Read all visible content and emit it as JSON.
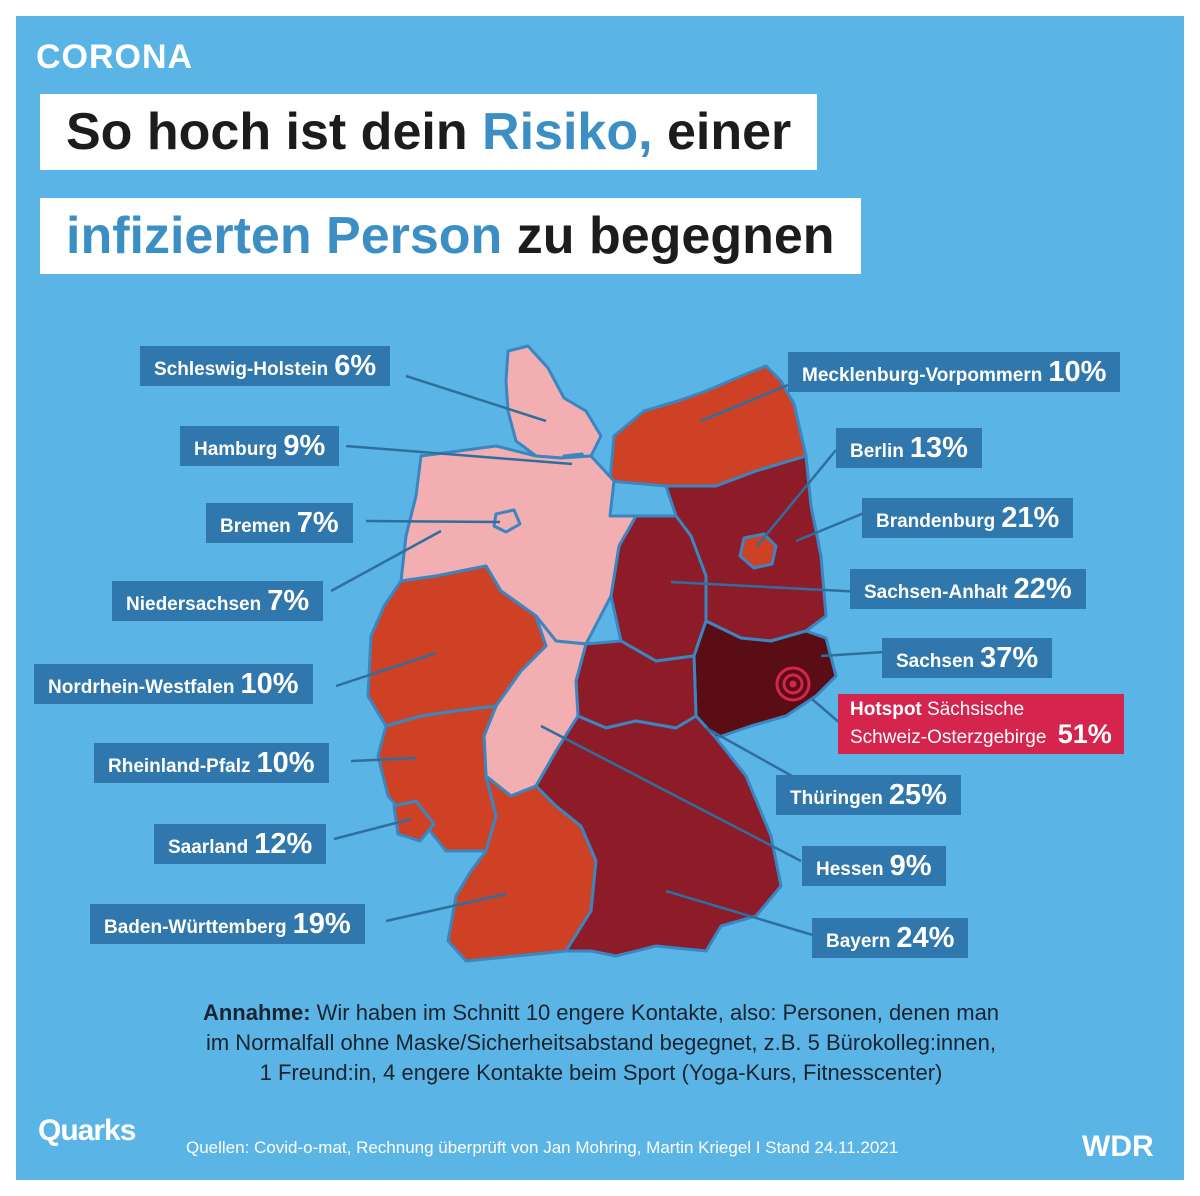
{
  "header": {
    "kicker": "CORONA",
    "title_line1": {
      "pre": "So hoch ist dein ",
      "highlight": "Risiko,",
      "post": " einer"
    },
    "title_line2": {
      "highlight": "infizierten Person",
      "post": " zu begegnen"
    }
  },
  "regions": [
    {
      "id": "sh",
      "name": "Schleswig-Holstein",
      "value": "6%"
    },
    {
      "id": "hh",
      "name": "Hamburg",
      "value": "9%"
    },
    {
      "id": "hb",
      "name": "Bremen",
      "value": "7%"
    },
    {
      "id": "ni",
      "name": "Niedersachsen",
      "value": "7%"
    },
    {
      "id": "nrw",
      "name": "Nordrhein-Westfalen",
      "value": "10%"
    },
    {
      "id": "rp",
      "name": "Rheinland-Pfalz",
      "value": "10%"
    },
    {
      "id": "sl",
      "name": "Saarland",
      "value": "12%"
    },
    {
      "id": "bw",
      "name": "Baden-Württemberg",
      "value": "19%"
    },
    {
      "id": "mv",
      "name": "Mecklenburg-Vorpommern",
      "value": "10%"
    },
    {
      "id": "be",
      "name": "Berlin",
      "value": "13%"
    },
    {
      "id": "bb",
      "name": "Brandenburg",
      "value": "21%"
    },
    {
      "id": "st",
      "name": "Sachsen-Anhalt",
      "value": "22%"
    },
    {
      "id": "sn",
      "name": "Sachsen",
      "value": "37%"
    },
    {
      "id": "th",
      "name": "Thüringen",
      "value": "25%"
    },
    {
      "id": "he",
      "name": "Hessen",
      "value": "9%"
    },
    {
      "id": "by",
      "name": "Bayern",
      "value": "24%"
    }
  ],
  "hotspot": {
    "prefix": "Hotspot",
    "line1": "Sächsische",
    "line2": "Schweiz-Osterzgebirge",
    "value": "51%"
  },
  "colors": {
    "background": "#5ab4e5",
    "label_bg": "#2f77ac",
    "hotspot": "#d5244e",
    "low": "#f2aeb0",
    "mid": "#cf4125",
    "high": "#8e1b28",
    "top": "#5a0d15"
  },
  "note": {
    "bold": "Annahme:",
    "line1": " Wir haben im Schnitt 10 engere Kontakte, also: Personen, denen man",
    "line2": "im Normalfall ohne Maske/Sicherheitsabstand begegnet, z.B. 5 Bürokolleg:innen,",
    "line3": "1 Freund:in, 4 engere Kontakte beim Sport (Yoga-Kurs, Fitnesscenter)"
  },
  "footer": {
    "brand_left": "Quarks",
    "source": "Quellen: Covid-o-mat, Rechnung überprüft von Jan Mohring, Martin Kriegel I Stand 24.11.2021",
    "brand_right": "WDR"
  }
}
